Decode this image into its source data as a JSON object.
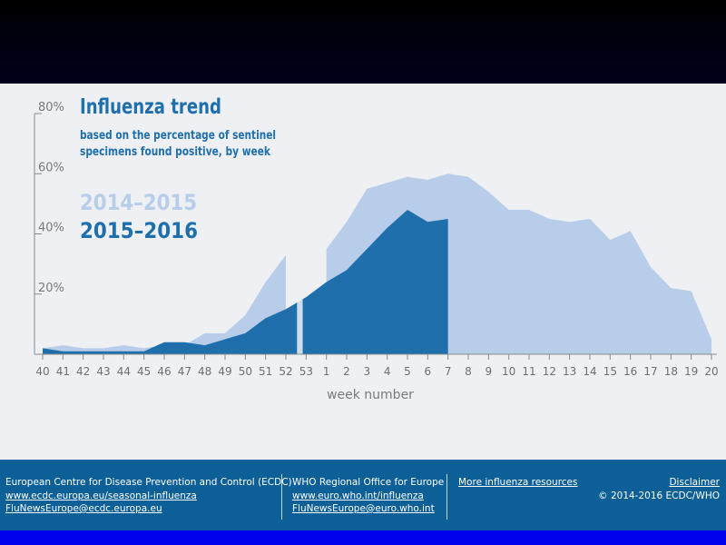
{
  "chart_data": {
    "type": "area",
    "title": "Influenza trend",
    "subtitle_lines": [
      "based on the percentage of sentinel",
      "specimens found positive, by week"
    ],
    "xlabel": "week number",
    "ylabel": "",
    "categories": [
      "40",
      "41",
      "42",
      "43",
      "44",
      "45",
      "46",
      "47",
      "48",
      "49",
      "50",
      "51",
      "52",
      "53",
      "1",
      "2",
      "3",
      "4",
      "5",
      "6",
      "7",
      "8",
      "9",
      "10",
      "11",
      "12",
      "13",
      "14",
      "15",
      "16",
      "17",
      "18",
      "19",
      "20"
    ],
    "ylim": [
      0,
      80
    ],
    "yticks": [
      20,
      40,
      60,
      80
    ],
    "ytick_labels": [
      "20%",
      "40%",
      "60%",
      "80%"
    ],
    "grid": false,
    "legend_position": "top-left",
    "series": [
      {
        "name": "2014–2015",
        "color": "#b8cde9",
        "values": [
          2,
          3,
          2,
          2,
          3,
          2,
          3,
          3,
          7,
          7,
          13,
          24,
          33,
          null,
          35,
          44,
          55,
          57,
          59,
          58,
          60,
          59,
          54,
          48,
          48,
          45,
          44,
          45,
          38,
          41,
          29,
          22,
          21,
          5
        ]
      },
      {
        "name": "2015–2016",
        "color": "#1f6fad",
        "values": [
          2,
          1,
          1,
          1,
          1,
          1,
          4,
          4,
          3,
          5,
          7,
          12,
          15,
          19,
          24,
          28,
          35,
          42,
          48,
          44,
          45,
          null,
          null,
          null,
          null,
          null,
          null,
          null,
          null,
          null,
          null,
          null,
          null,
          null
        ]
      }
    ],
    "week53_gap_band": true
  },
  "footer": {
    "ecdc_name": "European Centre for Disease Prevention and Control (ECDC)",
    "ecdc_url": "www.ecdc.europa.eu/seasonal-influenza",
    "ecdc_email": "FluNewsEurope@ecdc.europa.eu",
    "who_name": "WHO Regional Office for Europe",
    "who_url": "www.euro.who.int/influenza",
    "who_email": "FluNewsEurope@euro.who.int",
    "more_link": "More influenza resources",
    "disclaimer": "Disclaimer",
    "copyright": "© 2014-2016 ECDC/WHO"
  },
  "colors": {
    "panel_bg": "#eef0f3",
    "title_color": "#1f6fad",
    "axis_color": "#8a8a8a",
    "footer_bg": "#0c5f97"
  }
}
